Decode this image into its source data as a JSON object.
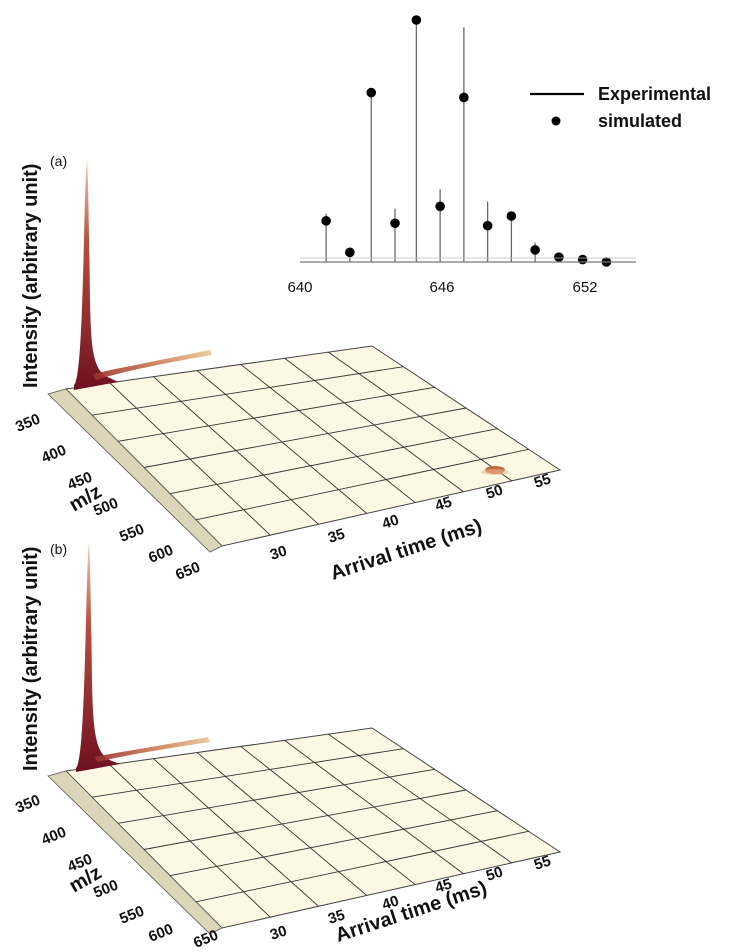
{
  "chart_data": [
    {
      "type": "scatter",
      "series": [
        {
          "name": "Experimental",
          "style": "stick",
          "x": [
            641.1,
            642.1,
            643.0,
            644.0,
            644.9,
            645.9,
            646.9,
            647.9,
            648.9,
            649.9,
            650.9,
            651.9,
            652.9
          ],
          "y": [
            0.2,
            0.05,
            0.7,
            0.22,
            1.0,
            0.3,
            0.97,
            0.25,
            0.2,
            0.08,
            0.02,
            0.02,
            0.01
          ]
        },
        {
          "name": "simulated",
          "style": "marker",
          "x": [
            641.1,
            642.1,
            643.0,
            644.0,
            644.9,
            645.9,
            646.9,
            647.9,
            648.9,
            649.9,
            650.9,
            651.9,
            652.9
          ],
          "y": [
            0.17,
            0.04,
            0.7,
            0.16,
            1.0,
            0.23,
            0.68,
            0.15,
            0.19,
            0.05,
            0.02,
            0.01,
            0.0
          ]
        }
      ],
      "xticks": [
        "640",
        "646",
        "652"
      ],
      "xlim": [
        640,
        656
      ],
      "ylim": [
        0,
        1.08
      ],
      "legend": [
        "Experimental",
        "simulated"
      ],
      "legend_position": "top-right"
    },
    {
      "type": "surface3d",
      "panel_label": "(a)",
      "zlabel": "Intensity (arbitrary unit)",
      "ylabel": "m/z",
      "xlabel": "Arrival time (ms)",
      "mz_ticks": [
        "350",
        "400",
        "450",
        "500",
        "550",
        "600",
        "650"
      ],
      "mz_range": [
        350,
        650
      ],
      "time_ticks": [
        "30",
        "35",
        "40",
        "45",
        "50",
        "55"
      ],
      "time_range": [
        25,
        60
      ],
      "peaks": [
        {
          "arrival_time_ms": 25.5,
          "mz": 345,
          "intensity": 1.0
        },
        {
          "arrival_time_ms": 46.5,
          "mz": 645,
          "intensity": 0.07
        }
      ]
    },
    {
      "type": "surface3d",
      "panel_label": "(b)",
      "zlabel": "Intensity (arbitrary unit)",
      "ylabel": "m/z",
      "xlabel": "Arrival time (ms)",
      "mz_ticks": [
        "350",
        "400",
        "450",
        "500",
        "550",
        "600",
        "650"
      ],
      "mz_range": [
        350,
        650
      ],
      "time_ticks": [
        "30",
        "35",
        "40",
        "45",
        "50",
        "55"
      ],
      "time_range": [
        25,
        60
      ],
      "peaks": [
        {
          "arrival_time_ms": 25.5,
          "mz": 345,
          "intensity": 1.0
        }
      ]
    }
  ],
  "colors": {
    "peak_dark": "#7a1520",
    "peak_mid": "#b34a3a",
    "peak_light": "#e0b08a",
    "floor": "#fdf8e4",
    "grid": "#333333",
    "stick": "#6a6a6a",
    "marker": "#000000"
  }
}
